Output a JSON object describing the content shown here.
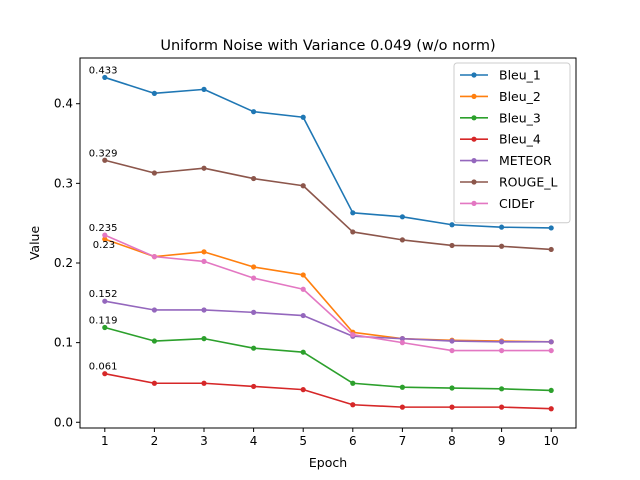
{
  "chart_data": {
    "type": "line",
    "title": "Uniform Noise with Variance 0.049 (w/o norm)",
    "xlabel": "Epoch",
    "ylabel": "Value",
    "x": [
      1,
      2,
      3,
      4,
      5,
      6,
      7,
      8,
      9,
      10
    ],
    "xlim": [
      0.5,
      10.5
    ],
    "ylim": [
      -0.0072,
      0.4574
    ],
    "yticks": [
      0.0,
      0.1,
      0.2,
      0.3,
      0.4
    ],
    "ytick_labels": [
      "0.0",
      "0.1",
      "0.2",
      "0.3",
      "0.4"
    ],
    "grid": false,
    "legend_position": "top-right",
    "series": [
      {
        "name": "Bleu_1",
        "color": "#1f77b4",
        "values": [
          0.433,
          0.413,
          0.418,
          0.39,
          0.383,
          0.263,
          0.258,
          0.248,
          0.245,
          0.244
        ],
        "first_label": "0.433"
      },
      {
        "name": "Bleu_2",
        "color": "#ff7f0e",
        "values": [
          0.23,
          0.208,
          0.214,
          0.195,
          0.185,
          0.113,
          0.105,
          0.103,
          0.102,
          0.101
        ],
        "first_label": "0.23"
      },
      {
        "name": "Bleu_3",
        "color": "#2ca02c",
        "values": [
          0.119,
          0.102,
          0.105,
          0.093,
          0.088,
          0.049,
          0.044,
          0.043,
          0.042,
          0.04
        ],
        "first_label": "0.119"
      },
      {
        "name": "Bleu_4",
        "color": "#d62728",
        "values": [
          0.061,
          0.049,
          0.049,
          0.045,
          0.041,
          0.022,
          0.019,
          0.019,
          0.019,
          0.017
        ],
        "first_label": "0.061"
      },
      {
        "name": "METEOR",
        "color": "#9467bd",
        "values": [
          0.152,
          0.141,
          0.141,
          0.138,
          0.134,
          0.108,
          0.105,
          0.102,
          0.101,
          0.101
        ],
        "first_label": "0.152"
      },
      {
        "name": "ROUGE_L",
        "color": "#8c564b",
        "values": [
          0.329,
          0.313,
          0.319,
          0.306,
          0.297,
          0.239,
          0.229,
          0.222,
          0.221,
          0.217
        ],
        "first_label": "0.329"
      },
      {
        "name": "CIDEr",
        "color": "#e377c2",
        "values": [
          0.235,
          0.208,
          0.202,
          0.181,
          0.167,
          0.11,
          0.1,
          0.09,
          0.09,
          0.09
        ],
        "first_label": "0.235"
      }
    ]
  }
}
